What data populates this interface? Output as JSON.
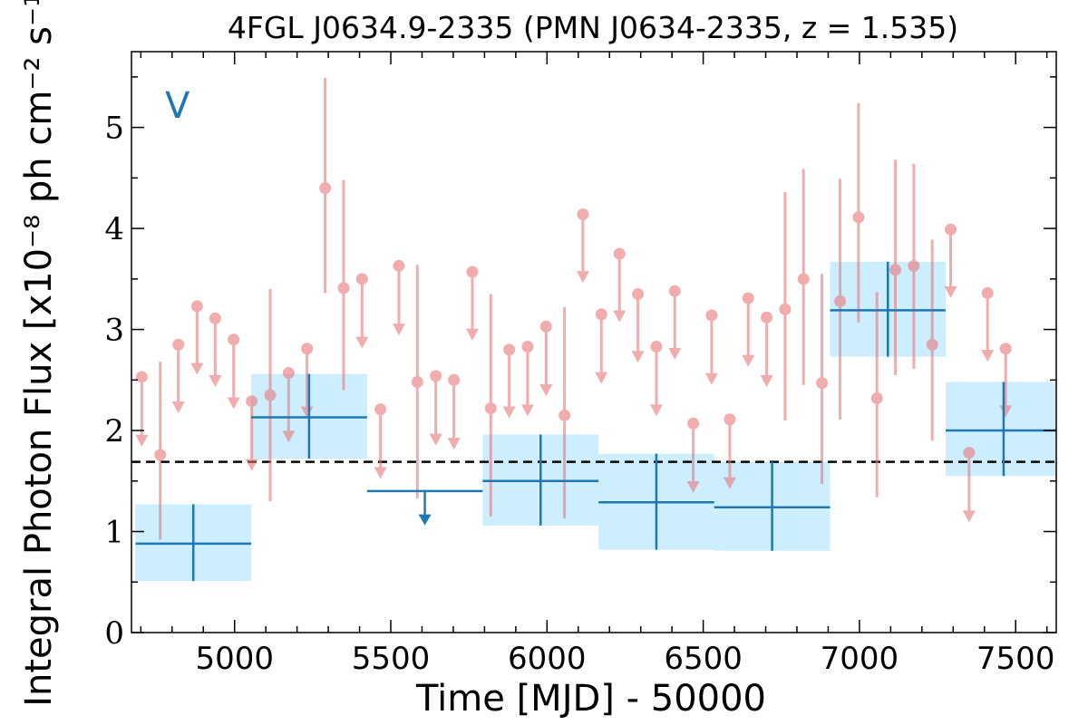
{
  "chart_data": {
    "type": "scatter",
    "title": "4FGL J0634.9-2335 (PMN J0634-2335, z = 1.535)",
    "panel_tag": "V",
    "xlabel": "Time [MJD] - 50000",
    "ylabel": "Integral Photon Flux [x10⁻⁸ ph cm⁻² s⁻¹]",
    "xlim": [
      4670,
      7630
    ],
    "ylim": [
      0,
      5.75
    ],
    "xticks": [
      5000,
      5500,
      6000,
      6500,
      7000,
      7500
    ],
    "xtick_labels": [
      "5000",
      "5500",
      "6000",
      "6500",
      "7000",
      "7500"
    ],
    "yticks": [
      0,
      1,
      2,
      3,
      4,
      5
    ],
    "ytick_labels": [
      "0",
      "1",
      "2",
      "3",
      "4",
      "5"
    ],
    "grid": false,
    "mean_flux": 1.69,
    "colors": {
      "short_bins": "#e8777a",
      "long_bins": "#1f77b4",
      "bin_fill": "#cdeeff",
      "mean_line": "#000000"
    },
    "short_bins": [
      {
        "x": 4703,
        "y": 2.53,
        "upper_limit": true,
        "lo": 1.85
      },
      {
        "x": 4762,
        "y": 1.76,
        "upper_limit": false,
        "lo": 0.92,
        "hi": 2.68
      },
      {
        "x": 4820,
        "y": 2.85,
        "upper_limit": true,
        "lo": 2.18
      },
      {
        "x": 4880,
        "y": 3.23,
        "upper_limit": true,
        "lo": 2.56
      },
      {
        "x": 4938,
        "y": 3.11,
        "upper_limit": true,
        "lo": 2.44
      },
      {
        "x": 4997,
        "y": 2.9,
        "upper_limit": true,
        "lo": 2.22
      },
      {
        "x": 5055,
        "y": 2.29,
        "upper_limit": true,
        "lo": 1.61
      },
      {
        "x": 5114,
        "y": 2.35,
        "upper_limit": false,
        "lo": 1.3,
        "hi": 3.4
      },
      {
        "x": 5173,
        "y": 2.57,
        "upper_limit": true,
        "lo": 1.89
      },
      {
        "x": 5232,
        "y": 2.81,
        "upper_limit": true,
        "lo": 2.13
      },
      {
        "x": 5290,
        "y": 4.4,
        "upper_limit": false,
        "lo": 3.36,
        "hi": 5.49
      },
      {
        "x": 5349,
        "y": 3.41,
        "upper_limit": false,
        "lo": 2.4,
        "hi": 4.48
      },
      {
        "x": 5408,
        "y": 3.5,
        "upper_limit": true,
        "lo": 2.82
      },
      {
        "x": 5467,
        "y": 2.21,
        "upper_limit": true,
        "lo": 1.53
      },
      {
        "x": 5526,
        "y": 3.63,
        "upper_limit": true,
        "lo": 2.95
      },
      {
        "x": 5585,
        "y": 2.48,
        "upper_limit": false,
        "lo": 1.33,
        "hi": 3.64
      },
      {
        "x": 5644,
        "y": 2.54,
        "upper_limit": true,
        "lo": 1.86
      },
      {
        "x": 5702,
        "y": 2.5,
        "upper_limit": true,
        "lo": 1.82
      },
      {
        "x": 5761,
        "y": 3.57,
        "upper_limit": true,
        "lo": 2.9
      },
      {
        "x": 5820,
        "y": 2.22,
        "upper_limit": false,
        "lo": 1.15,
        "hi": 3.35
      },
      {
        "x": 5879,
        "y": 2.8,
        "upper_limit": true,
        "lo": 2.13
      },
      {
        "x": 5938,
        "y": 2.83,
        "upper_limit": true,
        "lo": 2.15
      },
      {
        "x": 5997,
        "y": 3.03,
        "upper_limit": true,
        "lo": 2.35
      },
      {
        "x": 6056,
        "y": 2.15,
        "upper_limit": false,
        "lo": 1.13,
        "hi": 3.22
      },
      {
        "x": 6115,
        "y": 4.14,
        "upper_limit": true,
        "lo": 3.47
      },
      {
        "x": 6174,
        "y": 3.15,
        "upper_limit": true,
        "lo": 2.47
      },
      {
        "x": 6232,
        "y": 3.75,
        "upper_limit": true,
        "lo": 3.08
      },
      {
        "x": 6291,
        "y": 3.35,
        "upper_limit": true,
        "lo": 2.68
      },
      {
        "x": 6350,
        "y": 2.83,
        "upper_limit": true,
        "lo": 2.15
      },
      {
        "x": 6409,
        "y": 3.38,
        "upper_limit": true,
        "lo": 2.71
      },
      {
        "x": 6468,
        "y": 2.07,
        "upper_limit": true,
        "lo": 1.39
      },
      {
        "x": 6527,
        "y": 3.14,
        "upper_limit": true,
        "lo": 2.46
      },
      {
        "x": 6585,
        "y": 2.11,
        "upper_limit": true,
        "lo": 1.43
      },
      {
        "x": 6644,
        "y": 3.31,
        "upper_limit": true,
        "lo": 2.64
      },
      {
        "x": 6703,
        "y": 3.12,
        "upper_limit": true,
        "lo": 2.44
      },
      {
        "x": 6762,
        "y": 3.2,
        "upper_limit": false,
        "lo": 2.1,
        "hi": 4.36
      },
      {
        "x": 6821,
        "y": 3.5,
        "upper_limit": false,
        "lo": 2.45,
        "hi": 4.59
      },
      {
        "x": 6880,
        "y": 2.47,
        "upper_limit": false,
        "lo": 1.47,
        "hi": 3.55
      },
      {
        "x": 6938,
        "y": 3.28,
        "upper_limit": false,
        "lo": 2.11,
        "hi": 4.49
      },
      {
        "x": 6997,
        "y": 4.11,
        "upper_limit": false,
        "lo": 3.07,
        "hi": 5.24
      },
      {
        "x": 7056,
        "y": 2.32,
        "upper_limit": false,
        "lo": 1.34,
        "hi": 3.37
      },
      {
        "x": 7115,
        "y": 3.59,
        "upper_limit": false,
        "lo": 2.55,
        "hi": 4.68
      },
      {
        "x": 7174,
        "y": 3.63,
        "upper_limit": false,
        "lo": 2.61,
        "hi": 4.64
      },
      {
        "x": 7233,
        "y": 2.85,
        "upper_limit": false,
        "lo": 1.9,
        "hi": 3.89
      },
      {
        "x": 7292,
        "y": 3.99,
        "upper_limit": true,
        "lo": 3.32
      },
      {
        "x": 7351,
        "y": 1.78,
        "upper_limit": true,
        "lo": 1.1
      },
      {
        "x": 7410,
        "y": 3.36,
        "upper_limit": true,
        "lo": 2.69
      },
      {
        "x": 7468,
        "y": 2.81,
        "upper_limit": true,
        "lo": 2.14
      }
    ],
    "long_bins": [
      {
        "x0": 4683,
        "x1": 5053,
        "y": 0.88,
        "lo": 0.51,
        "hi": 1.27,
        "upper_limit": false
      },
      {
        "x0": 5053,
        "x1": 5424,
        "y": 2.13,
        "lo": 1.72,
        "hi": 2.56,
        "upper_limit": false
      },
      {
        "x0": 5424,
        "x1": 5794,
        "y": 1.4,
        "upper_limit": true
      },
      {
        "x0": 5794,
        "x1": 6165,
        "y": 1.5,
        "lo": 1.06,
        "hi": 1.96,
        "upper_limit": false
      },
      {
        "x0": 6165,
        "x1": 6535,
        "y": 1.29,
        "lo": 0.82,
        "hi": 1.77,
        "upper_limit": false
      },
      {
        "x0": 6535,
        "x1": 6906,
        "y": 1.24,
        "lo": 0.81,
        "hi": 1.69,
        "upper_limit": false
      },
      {
        "x0": 6906,
        "x1": 7276,
        "y": 3.19,
        "lo": 2.73,
        "hi": 3.67,
        "upper_limit": false
      },
      {
        "x0": 7276,
        "x1": 7647,
        "y": 2.0,
        "lo": 1.55,
        "hi": 2.48,
        "upper_limit": false
      }
    ]
  }
}
